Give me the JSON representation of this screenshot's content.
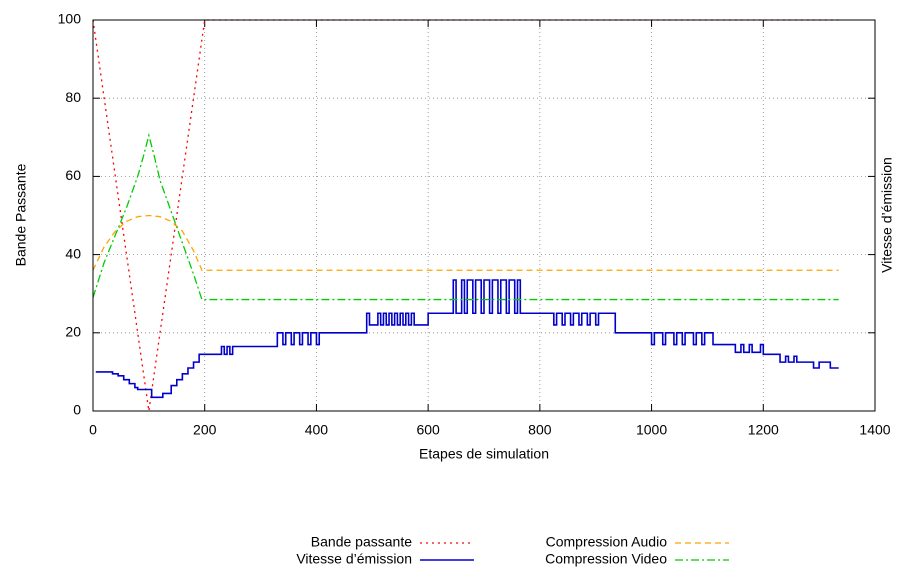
{
  "chart_data": {
    "type": "line",
    "xlabel": "Etapes de simulation",
    "ylabel": "Bande Passante",
    "y2label": "Vitesse d’émission",
    "xlim": [
      0,
      1400
    ],
    "xticks": [
      0,
      200,
      400,
      600,
      800,
      1000,
      1200,
      1400
    ],
    "ylim": [
      0,
      100
    ],
    "yticks": [
      0,
      20,
      40,
      60,
      80,
      100
    ],
    "grid": true,
    "legend": "bottom",
    "series": [
      {
        "name": "Bande passante",
        "color": "#ff0000",
        "line_style": "dotted",
        "x": [
          0,
          100,
          200,
          1335
        ],
        "values": [
          100,
          0,
          100,
          100
        ]
      },
      {
        "name": "Vitesse d’émission",
        "color": "#0000cc",
        "line_style": "solid",
        "x": [
          5,
          35,
          35,
          45,
          45,
          55,
          55,
          65,
          65,
          75,
          75,
          80,
          80,
          105,
          105,
          125,
          125,
          140,
          140,
          150,
          150,
          160,
          160,
          170,
          170,
          180,
          180,
          190,
          190,
          230,
          230,
          235,
          235,
          240,
          240,
          245,
          245,
          250,
          250,
          330,
          330,
          340,
          340,
          345,
          345,
          355,
          355,
          360,
          360,
          370,
          370,
          375,
          375,
          385,
          385,
          390,
          390,
          400,
          400,
          405,
          405,
          490,
          490,
          495,
          495,
          510,
          510,
          515,
          515,
          520,
          520,
          525,
          525,
          530,
          530,
          535,
          535,
          540,
          540,
          545,
          545,
          550,
          550,
          555,
          555,
          560,
          560,
          565,
          565,
          570,
          570,
          575,
          575,
          600,
          600,
          645,
          645,
          650,
          650,
          660,
          660,
          665,
          665,
          670,
          670,
          680,
          680,
          685,
          685,
          695,
          695,
          700,
          700,
          710,
          710,
          715,
          715,
          725,
          725,
          730,
          730,
          740,
          740,
          745,
          745,
          755,
          755,
          760,
          760,
          765,
          765,
          825,
          825,
          830,
          830,
          840,
          840,
          845,
          845,
          855,
          855,
          860,
          860,
          870,
          870,
          875,
          875,
          885,
          885,
          890,
          890,
          900,
          900,
          905,
          905,
          935,
          935,
          1000,
          1000,
          1005,
          1005,
          1020,
          1020,
          1025,
          1025,
          1040,
          1040,
          1045,
          1045,
          1055,
          1055,
          1060,
          1060,
          1075,
          1075,
          1080,
          1080,
          1090,
          1090,
          1095,
          1095,
          1110,
          1110,
          1150,
          1150,
          1160,
          1160,
          1165,
          1165,
          1175,
          1175,
          1180,
          1180,
          1195,
          1195,
          1200,
          1200,
          1230,
          1230,
          1240,
          1240,
          1245,
          1245,
          1255,
          1255,
          1260,
          1260,
          1290,
          1290,
          1300,
          1300,
          1320,
          1320,
          1335
        ],
        "values": [
          10,
          10,
          9.5,
          9.5,
          9,
          9,
          8,
          8,
          7,
          7,
          6,
          6,
          5.5,
          5.5,
          3.5,
          3.5,
          4.5,
          4.5,
          6.5,
          6.5,
          8,
          8,
          9.5,
          9.5,
          11,
          11,
          12.5,
          12.5,
          14.5,
          14.5,
          16.5,
          16.5,
          14.5,
          14.5,
          16.5,
          16.5,
          14.5,
          14.5,
          16.5,
          16.5,
          20,
          20,
          17,
          17,
          20,
          20,
          17,
          17,
          20,
          20,
          17,
          17,
          20,
          20,
          17,
          17,
          20,
          20,
          17,
          17,
          20,
          20,
          25,
          25,
          22,
          22,
          25,
          25,
          22,
          22,
          25,
          25,
          22,
          22,
          25,
          25,
          22,
          22,
          25,
          25,
          22,
          22,
          25,
          25,
          22,
          22,
          25,
          25,
          22,
          22,
          25,
          25,
          22,
          22,
          25,
          25,
          33.5,
          33.5,
          25,
          25,
          33.5,
          33.5,
          25,
          25,
          33.5,
          33.5,
          25,
          25,
          33.5,
          33.5,
          25,
          25,
          33.5,
          33.5,
          25,
          25,
          33.5,
          33.5,
          25,
          25,
          33.5,
          33.5,
          25,
          25,
          33.5,
          33.5,
          25,
          25,
          33.5,
          33.5,
          25,
          25,
          22,
          22,
          25,
          25,
          22,
          22,
          25,
          25,
          22,
          22,
          25,
          25,
          22,
          22,
          25,
          25,
          22,
          22,
          25,
          25,
          22,
          22,
          25,
          25,
          20,
          20,
          17,
          17,
          20,
          20,
          17,
          17,
          20,
          20,
          17,
          17,
          20,
          20,
          17,
          17,
          20,
          20,
          17,
          17,
          20,
          20,
          17,
          17,
          20,
          20,
          17,
          17,
          15,
          15,
          17,
          17,
          15,
          15,
          17,
          17,
          15,
          15,
          17,
          17,
          14.5,
          14.5,
          12.5,
          12.5,
          14,
          14,
          12.5,
          12.5,
          14,
          14,
          12.5,
          12.5,
          11,
          11,
          12.5,
          12.5,
          11,
          11
        ]
      },
      {
        "name": "Compression Audio",
        "color": "#ffa500",
        "line_style": "dashed",
        "x": [
          0,
          20,
          40,
          60,
          80,
          100,
          120,
          140,
          160,
          180,
          195,
          1335
        ],
        "values": [
          36,
          42,
          46,
          48.5,
          49.7,
          50,
          49.7,
          48.5,
          46,
          41,
          36,
          36
        ]
      },
      {
        "name": "Compression Video",
        "color": "#00cc00",
        "line_style": "dashdot",
        "x": [
          0,
          20,
          40,
          60,
          80,
          90,
          100,
          110,
          120,
          140,
          160,
          180,
          195,
          1335
        ],
        "values": [
          29,
          38,
          45,
          52,
          60,
          65,
          70.5,
          65,
          59,
          51,
          43,
          35,
          28.5,
          28.5
        ]
      }
    ]
  }
}
